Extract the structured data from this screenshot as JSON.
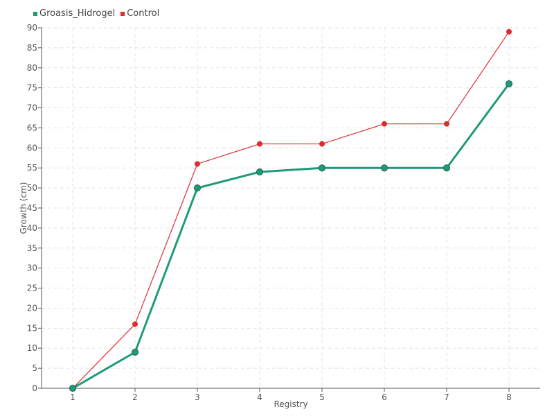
{
  "chart_data": {
    "type": "line",
    "x": [
      1,
      2,
      3,
      4,
      5,
      6,
      7,
      8
    ],
    "series": [
      {
        "name": "Groasis_Hidrogel",
        "color": "#1f9a78",
        "values": [
          0,
          9,
          50,
          54,
          55,
          55,
          55,
          76
        ]
      },
      {
        "name": "Control",
        "color": "#e02a2f",
        "values": [
          0,
          16,
          56,
          61,
          61,
          66,
          66,
          89
        ]
      }
    ],
    "xlabel": "Registry",
    "ylabel": "Growth (cm)",
    "ylim": [
      0,
      90
    ],
    "yticks": [
      0,
      5,
      10,
      15,
      20,
      25,
      30,
      35,
      40,
      45,
      50,
      55,
      60,
      65,
      70,
      75,
      80,
      85,
      90
    ],
    "xticks": [
      "1",
      "2",
      "3",
      "4",
      "5",
      "6",
      "7",
      "8"
    ],
    "grid": true,
    "legend_position": "top-left"
  }
}
